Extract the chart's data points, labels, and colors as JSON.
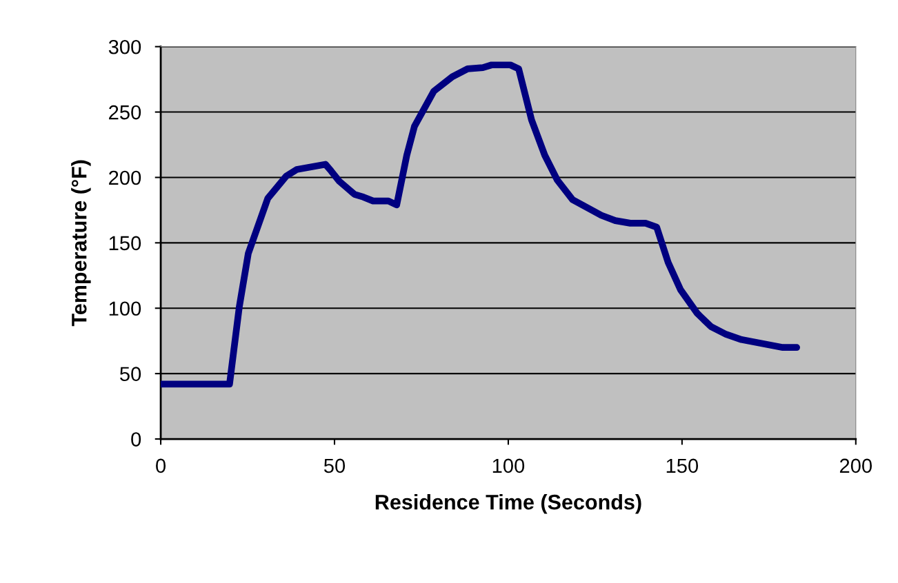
{
  "chart_data": {
    "type": "line",
    "xlabel": "Residence Time (Seconds)",
    "ylabel": "Temperature (°F)",
    "xlim": [
      0,
      200
    ],
    "xticks": [
      0,
      50,
      100,
      150,
      200
    ],
    "ylim": [
      0,
      300
    ],
    "yticks": [
      0,
      50,
      100,
      150,
      200,
      250,
      300
    ],
    "grid": "y",
    "marker": "none",
    "line_style": "solid",
    "series": [
      {
        "color": "#000080",
        "x": [
          0,
          19.8,
          22.6,
          25.2,
          30.8,
          36.1,
          39.1,
          47.4,
          49,
          51.4,
          53.6,
          55.8,
          58.3,
          61.1,
          65.5,
          67.9,
          70.8,
          73,
          78.6,
          83.9,
          88.3,
          92.7,
          95.2,
          100.6,
          103,
          106.7,
          110.5,
          114.1,
          118.5,
          126.8,
          130.8,
          135.1,
          139.5,
          142.7,
          146,
          149.6,
          154.4,
          158.3,
          162.7,
          167.1,
          179,
          183
        ],
        "values": [
          42,
          42,
          101,
          142,
          184,
          201,
          206,
          210,
          205,
          197,
          192,
          187,
          185,
          182,
          182,
          179,
          217,
          239,
          266,
          277,
          283,
          284,
          286,
          286,
          283,
          244,
          217,
          198,
          183,
          171,
          167,
          165,
          165,
          162,
          135,
          114,
          96,
          86,
          80,
          76,
          70,
          70
        ]
      }
    ]
  }
}
